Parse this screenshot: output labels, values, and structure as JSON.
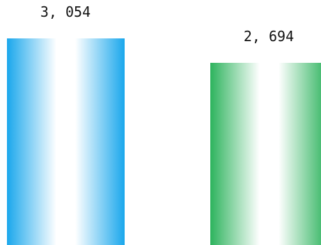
{
  "chart_data": {
    "type": "bar",
    "categories": [
      "",
      ""
    ],
    "values": [
      3054,
      2694
    ],
    "value_labels": [
      "3, 054",
      "2, 694"
    ],
    "colors": [
      "#1aa7ec",
      "#2db35d"
    ],
    "title": "",
    "xlabel": "",
    "ylabel": "",
    "ylim": [
      0,
      3300
    ],
    "grid": false,
    "legend": "none"
  }
}
